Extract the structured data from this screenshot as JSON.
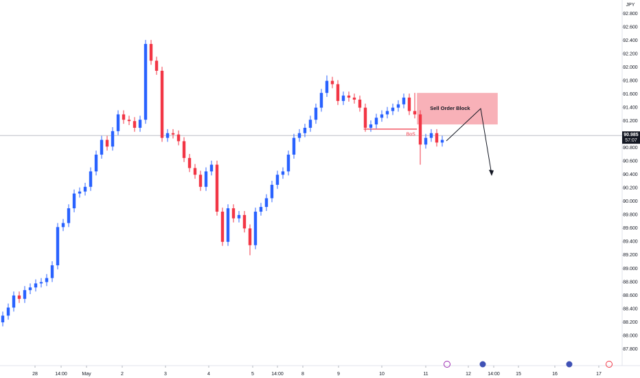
{
  "chart_data": {
    "type": "candlestick",
    "currency": "JPY",
    "up_color": "#2962ff",
    "down_color": "#f23645",
    "ylim": [
      87.575,
      93.005
    ],
    "xlim": [
      -0.5,
      112.75
    ],
    "yticks": [
      {
        "value": 87.8,
        "label": "87.800"
      },
      {
        "value": 88.0,
        "label": "88.000"
      },
      {
        "value": 88.2,
        "label": "88.200"
      },
      {
        "value": 88.4,
        "label": "88.400"
      },
      {
        "value": 88.6,
        "label": "88.600"
      },
      {
        "value": 88.8,
        "label": "88.800"
      },
      {
        "value": 89.0,
        "label": "89.000"
      },
      {
        "value": 89.2,
        "label": "89.200"
      },
      {
        "value": 89.4,
        "label": "89.400"
      },
      {
        "value": 89.6,
        "label": "89.600"
      },
      {
        "value": 89.8,
        "label": "89.800"
      },
      {
        "value": 90.0,
        "label": "90.000"
      },
      {
        "value": 90.2,
        "label": "90.200"
      },
      {
        "value": 90.4,
        "label": "90.400"
      },
      {
        "value": 90.6,
        "label": "90.600"
      },
      {
        "value": 90.8,
        "label": "90.800"
      },
      {
        "value": 91.2,
        "label": "91.200"
      },
      {
        "value": 91.4,
        "label": "91.400"
      },
      {
        "value": 91.6,
        "label": "91.600"
      },
      {
        "value": 91.8,
        "label": "91.800"
      },
      {
        "value": 92.0,
        "label": "92.000"
      },
      {
        "value": 92.2,
        "label": "92.200"
      },
      {
        "value": 92.4,
        "label": "92.400"
      },
      {
        "value": 92.6,
        "label": "92.600"
      },
      {
        "value": 92.8,
        "label": "92.800"
      }
    ],
    "xticks": [
      {
        "value": 5.875,
        "label": "28"
      },
      {
        "value": 10.625,
        "label": "14:00"
      },
      {
        "value": 15.25,
        "label": "May"
      },
      {
        "value": 21.75,
        "label": "2"
      },
      {
        "value": 29.625,
        "label": "3"
      },
      {
        "value": 37.5,
        "label": "4"
      },
      {
        "value": 45.5,
        "label": "5"
      },
      {
        "value": 50,
        "label": "14:00"
      },
      {
        "value": 54.625,
        "label": "8"
      },
      {
        "value": 61.125,
        "label": "9"
      },
      {
        "value": 69,
        "label": "10"
      },
      {
        "value": 77,
        "label": "11"
      },
      {
        "value": 84.75,
        "label": "12"
      },
      {
        "value": 89.375,
        "label": "14:00"
      },
      {
        "value": 93.875,
        "label": "15"
      },
      {
        "value": 100.5,
        "label": "16"
      },
      {
        "value": 108.5,
        "label": "17"
      }
    ],
    "last_price": {
      "value": 90.985,
      "label": "90.985"
    },
    "countdown": "57:07",
    "zone": {
      "label": "Sell Order Block",
      "start": 75.4,
      "end": 90.1,
      "top": 91.62,
      "bottom": 91.15
    },
    "bos": {
      "label": "BoS",
      "start": 65.7,
      "end": 75.4,
      "value": 91.08
    },
    "ohlc": [
      [
        88.2,
        88.36,
        88.14,
        88.3
      ],
      [
        88.3,
        88.48,
        88.24,
        88.42
      ],
      [
        88.42,
        88.66,
        88.36,
        88.6
      ],
      [
        88.6,
        88.66,
        88.49,
        88.55
      ],
      [
        88.55,
        88.74,
        88.49,
        88.68
      ],
      [
        88.68,
        88.78,
        88.62,
        88.72
      ],
      [
        88.72,
        88.84,
        88.66,
        88.78
      ],
      [
        88.78,
        88.86,
        88.72,
        88.8
      ],
      [
        88.8,
        88.92,
        88.74,
        88.86
      ],
      [
        88.86,
        89.11,
        88.8,
        89.05
      ],
      [
        89.05,
        89.68,
        88.99,
        89.62
      ],
      [
        89.62,
        89.74,
        89.56,
        89.68
      ],
      [
        89.68,
        89.96,
        89.62,
        89.9
      ],
      [
        89.9,
        90.18,
        89.84,
        90.12
      ],
      [
        90.12,
        90.21,
        90.06,
        90.15
      ],
      [
        90.15,
        90.28,
        90.09,
        90.22
      ],
      [
        90.22,
        90.51,
        90.16,
        90.45
      ],
      [
        90.45,
        90.76,
        90.39,
        90.7
      ],
      [
        90.7,
        90.98,
        90.64,
        90.92
      ],
      [
        90.92,
        90.98,
        90.76,
        90.82
      ],
      [
        90.82,
        91.11,
        90.76,
        91.05
      ],
      [
        91.05,
        91.36,
        90.99,
        91.3
      ],
      [
        91.3,
        91.36,
        91.16,
        91.22
      ],
      [
        91.22,
        91.28,
        91.14,
        91.2
      ],
      [
        91.2,
        91.26,
        91.04,
        91.1
      ],
      [
        91.1,
        91.28,
        91.04,
        91.22
      ],
      [
        91.22,
        92.41,
        91.16,
        92.35
      ],
      [
        92.35,
        92.41,
        92.04,
        92.1
      ],
      [
        92.1,
        92.16,
        91.89,
        91.95
      ],
      [
        91.95,
        92.01,
        90.89,
        90.95
      ],
      [
        90.95,
        91.08,
        90.89,
        91.02
      ],
      [
        91.02,
        91.08,
        90.94,
        91.0
      ],
      [
        91.0,
        91.06,
        90.84,
        90.9
      ],
      [
        90.9,
        90.96,
        90.59,
        90.65
      ],
      [
        90.65,
        90.71,
        90.44,
        90.5
      ],
      [
        90.5,
        90.56,
        90.34,
        90.4
      ],
      [
        90.4,
        90.46,
        90.16,
        90.22
      ],
      [
        90.22,
        90.51,
        90.16,
        90.45
      ],
      [
        90.45,
        90.61,
        90.39,
        90.55
      ],
      [
        90.55,
        90.61,
        89.79,
        89.85
      ],
      [
        89.85,
        89.91,
        89.34,
        89.4
      ],
      [
        89.4,
        89.96,
        89.34,
        89.9
      ],
      [
        89.9,
        89.96,
        89.69,
        89.75
      ],
      [
        89.75,
        89.86,
        89.69,
        89.8
      ],
      [
        89.8,
        89.86,
        89.54,
        89.6
      ],
      [
        89.6,
        89.66,
        89.2,
        89.35
      ],
      [
        89.35,
        89.91,
        89.29,
        89.85
      ],
      [
        89.85,
        89.98,
        89.79,
        89.92
      ],
      [
        89.92,
        90.11,
        89.86,
        90.05
      ],
      [
        90.05,
        90.31,
        89.99,
        90.25
      ],
      [
        90.25,
        90.46,
        90.19,
        90.4
      ],
      [
        90.4,
        90.51,
        90.34,
        90.45
      ],
      [
        90.45,
        90.76,
        90.39,
        90.7
      ],
      [
        90.7,
        91.01,
        90.64,
        90.95
      ],
      [
        90.95,
        91.08,
        90.89,
        91.02
      ],
      [
        91.02,
        91.16,
        90.96,
        91.1
      ],
      [
        91.1,
        91.28,
        91.04,
        91.22
      ],
      [
        91.22,
        91.46,
        91.16,
        91.4
      ],
      [
        91.4,
        91.68,
        91.34,
        91.62
      ],
      [
        91.62,
        91.88,
        91.56,
        91.8
      ],
      [
        91.8,
        91.86,
        91.69,
        91.75
      ],
      [
        91.75,
        91.81,
        91.44,
        91.5
      ],
      [
        91.5,
        91.64,
        91.44,
        91.58
      ],
      [
        91.58,
        91.64,
        91.49,
        91.55
      ],
      [
        91.55,
        91.61,
        91.46,
        91.52
      ],
      [
        91.52,
        91.58,
        91.34,
        91.4
      ],
      [
        91.4,
        91.46,
        91.04,
        91.1
      ],
      [
        91.1,
        91.21,
        91.04,
        91.15
      ],
      [
        91.15,
        91.31,
        91.09,
        91.25
      ],
      [
        91.25,
        91.36,
        91.19,
        91.3
      ],
      [
        91.3,
        91.41,
        91.24,
        91.35
      ],
      [
        91.35,
        91.46,
        91.29,
        91.4
      ],
      [
        91.4,
        91.51,
        91.34,
        91.45
      ],
      [
        91.45,
        91.61,
        91.39,
        91.55
      ],
      [
        91.55,
        91.61,
        91.29,
        91.35
      ],
      [
        91.35,
        91.62,
        91.24,
        91.3
      ],
      [
        91.3,
        91.36,
        90.55,
        90.85
      ],
      [
        90.85,
        91.01,
        90.79,
        90.95
      ],
      [
        90.95,
        91.08,
        90.89,
        91.02
      ],
      [
        91.02,
        91.08,
        90.82,
        90.88
      ],
      [
        90.88,
        90.98,
        90.82,
        90.92
      ]
    ]
  }
}
